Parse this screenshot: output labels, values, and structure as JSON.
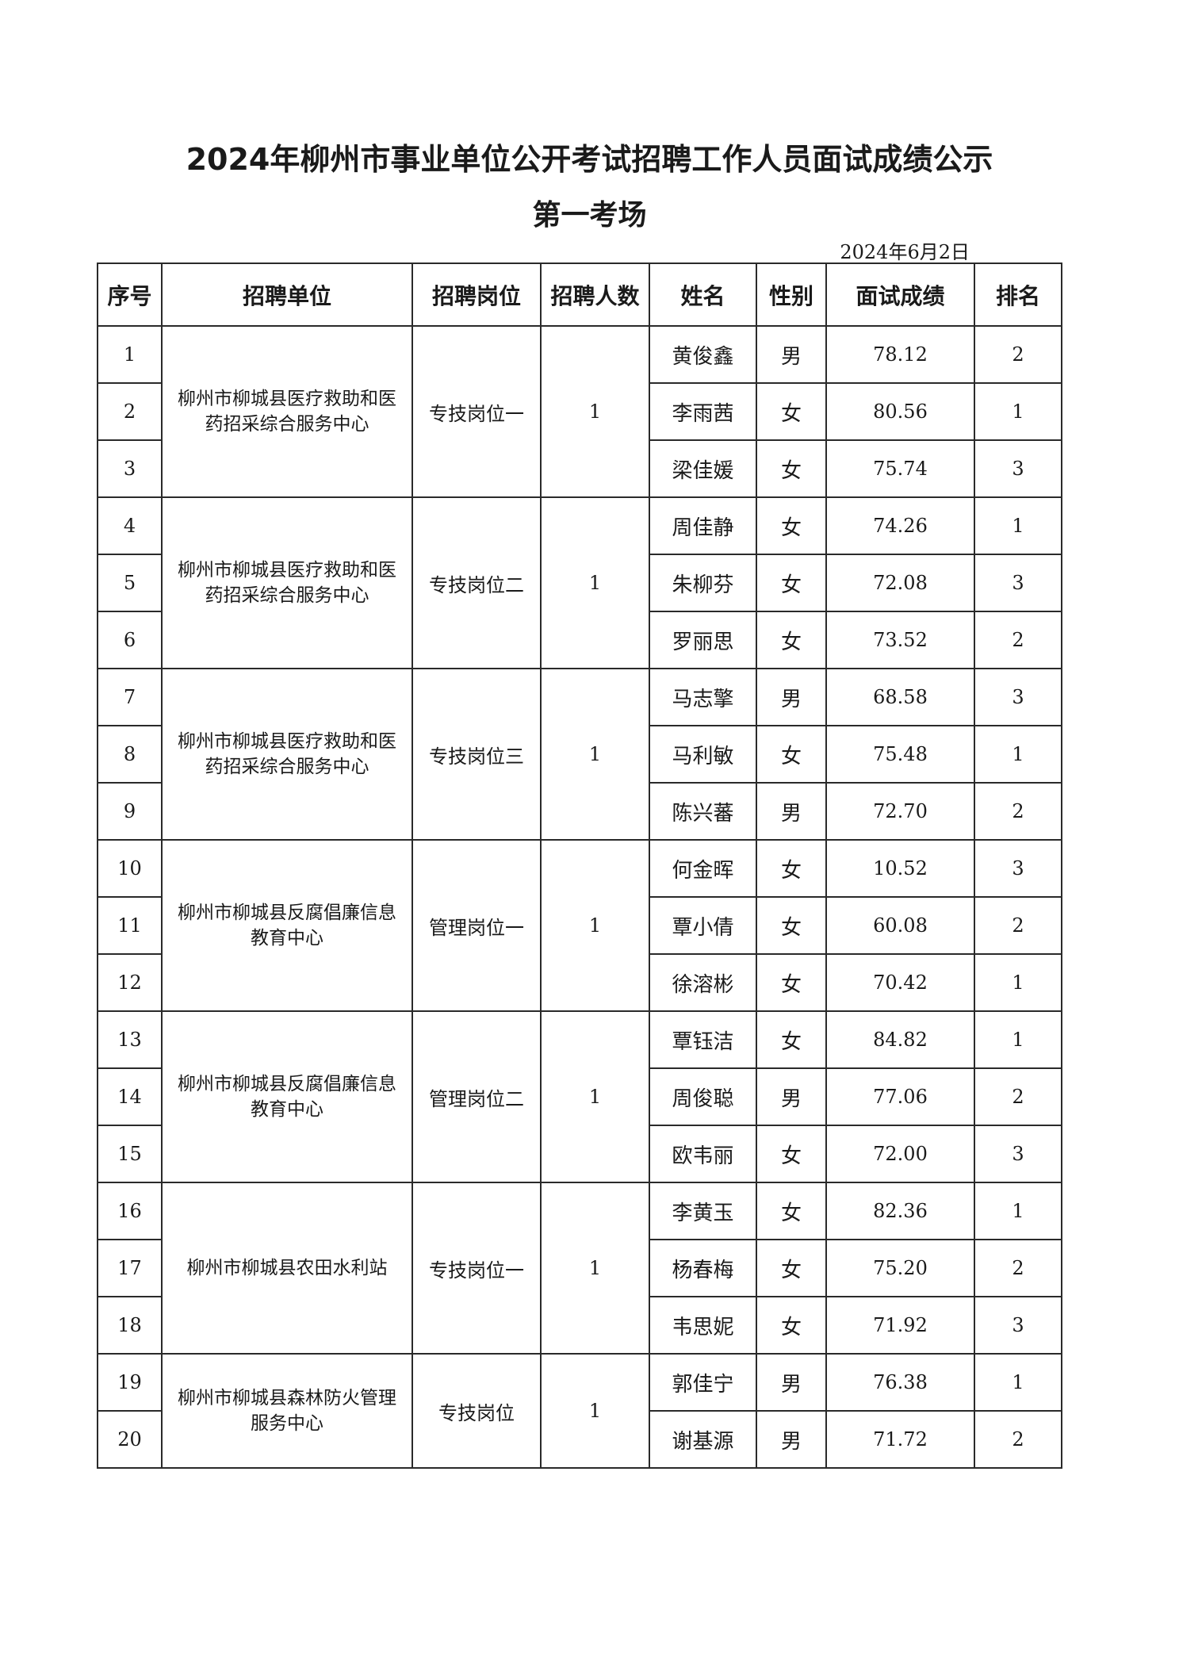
{
  "title": "2024年柳州市事业单位公开考试招聘工作人员面试成绩公示",
  "subtitle": "第一考场",
  "date": "2024年6月2日",
  "headers": [
    "序号",
    "招聘单位",
    "招聘岗位",
    "招聘人数",
    "姓名",
    "性别",
    "面试成绩",
    "排名"
  ],
  "groups": [
    {
      "unit": "柳州市柳城县医疗救助和医药招采综合服务中心",
      "position": "专技岗位一",
      "count": "1",
      "rows": [
        {
          "no": "1",
          "name": "黄俊鑫",
          "gender": "男",
          "score": "78.12",
          "rank": "2"
        },
        {
          "no": "2",
          "name": "李雨茜",
          "gender": "女",
          "score": "80.56",
          "rank": "1"
        },
        {
          "no": "3",
          "name": "梁佳媛",
          "gender": "女",
          "score": "75.74",
          "rank": "3"
        }
      ]
    },
    {
      "unit": "柳州市柳城县医疗救助和医药招采综合服务中心",
      "position": "专技岗位二",
      "count": "1",
      "rows": [
        {
          "no": "4",
          "name": "周佳静",
          "gender": "女",
          "score": "74.26",
          "rank": "1"
        },
        {
          "no": "5",
          "name": "朱柳芬",
          "gender": "女",
          "score": "72.08",
          "rank": "3"
        },
        {
          "no": "6",
          "name": "罗丽思",
          "gender": "女",
          "score": "73.52",
          "rank": "2"
        }
      ]
    },
    {
      "unit": "柳州市柳城县医疗救助和医药招采综合服务中心",
      "position": "专技岗位三",
      "count": "1",
      "rows": [
        {
          "no": "7",
          "name": "马志擎",
          "gender": "男",
          "score": "68.58",
          "rank": "3"
        },
        {
          "no": "8",
          "name": "马利敏",
          "gender": "女",
          "score": "75.48",
          "rank": "1"
        },
        {
          "no": "9",
          "name": "陈兴蕃",
          "gender": "男",
          "score": "72.70",
          "rank": "2"
        }
      ]
    },
    {
      "unit": "柳州市柳城县反腐倡廉信息教育中心",
      "position": "管理岗位一",
      "count": "1",
      "rows": [
        {
          "no": "10",
          "name": "何金晖",
          "gender": "女",
          "score": "10.52",
          "rank": "3"
        },
        {
          "no": "11",
          "name": "覃小倩",
          "gender": "女",
          "score": "60.08",
          "rank": "2"
        },
        {
          "no": "12",
          "name": "徐溶彬",
          "gender": "女",
          "score": "70.42",
          "rank": "1"
        }
      ]
    },
    {
      "unit": "柳州市柳城县反腐倡廉信息教育中心",
      "position": "管理岗位二",
      "count": "1",
      "rows": [
        {
          "no": "13",
          "name": "覃钰洁",
          "gender": "女",
          "score": "84.82",
          "rank": "1"
        },
        {
          "no": "14",
          "name": "周俊聪",
          "gender": "男",
          "score": "77.06",
          "rank": "2"
        },
        {
          "no": "15",
          "name": "欧韦丽",
          "gender": "女",
          "score": "72.00",
          "rank": "3"
        }
      ]
    },
    {
      "unit": "柳州市柳城县农田水利站",
      "position": "专技岗位一",
      "count": "1",
      "rows": [
        {
          "no": "16",
          "name": "李黄玉",
          "gender": "女",
          "score": "82.36",
          "rank": "1"
        },
        {
          "no": "17",
          "name": "杨春梅",
          "gender": "女",
          "score": "75.20",
          "rank": "2"
        },
        {
          "no": "18",
          "name": "韦思妮",
          "gender": "女",
          "score": "71.92",
          "rank": "3"
        }
      ]
    },
    {
      "unit": "柳州市柳城县森林防火管理服务中心",
      "position": "专技岗位",
      "count": "1",
      "rows": [
        {
          "no": "19",
          "name": "郭佳宁",
          "gender": "男",
          "score": "76.38",
          "rank": "1"
        },
        {
          "no": "20",
          "name": "谢基源",
          "gender": "男",
          "score": "71.72",
          "rank": "2"
        }
      ]
    }
  ]
}
